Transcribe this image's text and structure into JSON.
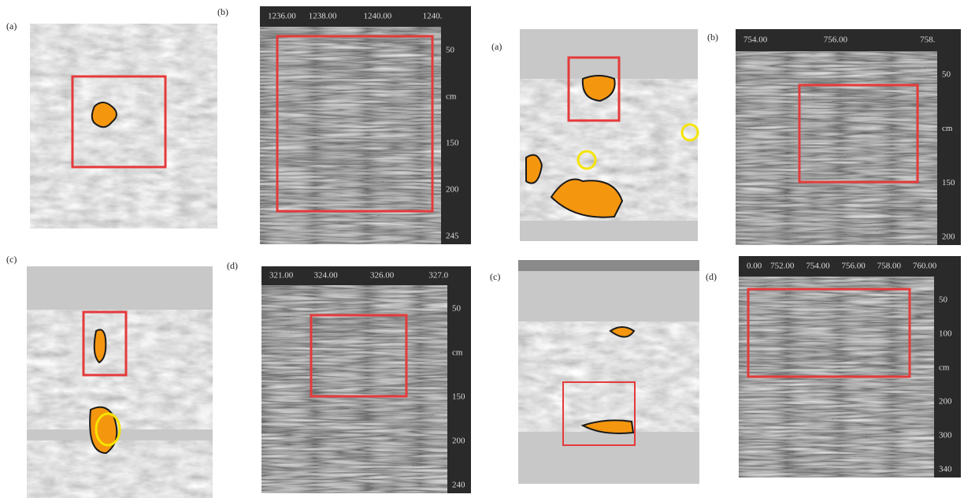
{
  "panels": [
    {
      "label": "(a)"
    },
    {
      "label": "(b)"
    },
    {
      "label": "(a)"
    },
    {
      "label": "(b)"
    },
    {
      "label": "(c)"
    },
    {
      "label": "(d)"
    },
    {
      "label": "(c)"
    },
    {
      "label": "(d)"
    }
  ],
  "radargrams": [
    {
      "top_ticks": [
        "1236.00",
        "1238.00",
        "1240.00",
        "1240."
      ],
      "right_ticks": [
        "50",
        "cm",
        "150",
        "200",
        "245"
      ]
    },
    {
      "top_ticks": [
        "754.00",
        "756.00",
        "758."
      ],
      "right_ticks": [
        "50",
        "cm",
        "150",
        "200"
      ]
    },
    {
      "top_ticks": [
        "321.00",
        "324.00",
        "326.00",
        "327.0"
      ],
      "right_ticks": [
        "50",
        "cm",
        "150",
        "200",
        "240"
      ]
    },
    {
      "top_ticks": [
        "0.00",
        "752.00",
        "754.00",
        "756.00",
        "758.00",
        "760.00"
      ],
      "right_ticks": [
        "50",
        "100",
        "cm",
        "200",
        "300",
        "340"
      ]
    }
  ]
}
